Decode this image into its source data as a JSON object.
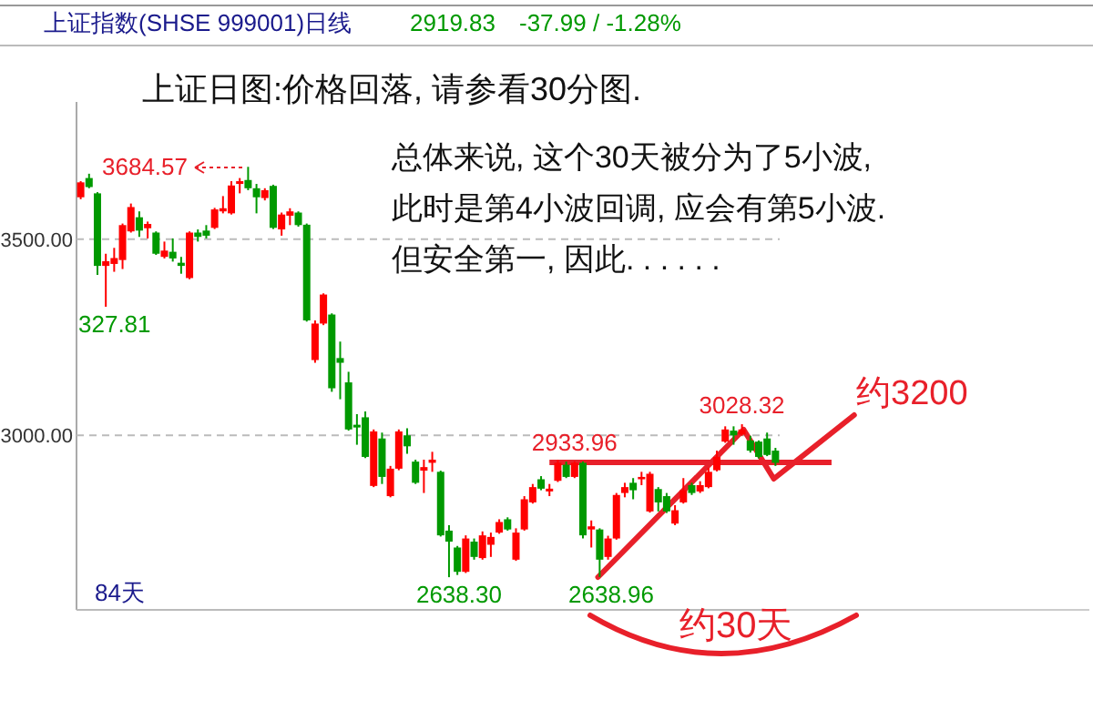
{
  "chart_data": {
    "type": "candlestick",
    "title": "上证日图:价格回落, 请参看30分图.",
    "ohlc": [
      [
        3607,
        3648,
        3602,
        3645
      ],
      [
        3656,
        3667,
        3630,
        3633
      ],
      [
        3617,
        3620,
        3409,
        3432
      ],
      [
        3432,
        3463,
        3327.81,
        3444
      ],
      [
        3437,
        3478,
        3417,
        3452
      ],
      [
        3447,
        3540,
        3424,
        3536
      ],
      [
        3520,
        3591,
        3517,
        3582
      ],
      [
        3556,
        3571,
        3506,
        3522
      ],
      [
        3528,
        3545,
        3502,
        3539
      ],
      [
        3517,
        3520,
        3460,
        3463
      ],
      [
        3455,
        3494,
        3451,
        3471
      ],
      [
        3468,
        3502,
        3443,
        3451
      ],
      [
        3440,
        3455,
        3412,
        3432
      ],
      [
        3401,
        3520,
        3398,
        3517
      ],
      [
        3517,
        3525,
        3494,
        3506
      ],
      [
        3522,
        3536,
        3502,
        3509
      ],
      [
        3529,
        3580,
        3526,
        3576
      ],
      [
        3571,
        3610,
        3566,
        3579
      ],
      [
        3566,
        3648,
        3563,
        3637
      ],
      [
        3641,
        3656,
        3617,
        3648
      ],
      [
        3651,
        3684.57,
        3625,
        3630
      ],
      [
        3630,
        3641,
        3566,
        3607
      ],
      [
        3605,
        3630,
        3599,
        3625
      ],
      [
        3636,
        3639,
        3526,
        3529
      ],
      [
        3525,
        3568,
        3509,
        3563
      ],
      [
        3560,
        3579,
        3536,
        3571
      ],
      [
        3568,
        3571,
        3532,
        3536
      ],
      [
        3537,
        3540,
        3290,
        3293
      ],
      [
        3192,
        3293,
        3185,
        3285
      ],
      [
        3285,
        3362,
        3281,
        3359
      ],
      [
        3308,
        3311,
        3111,
        3120
      ],
      [
        3197,
        3239,
        3092,
        3185
      ],
      [
        3135,
        3162,
        3012,
        3015
      ],
      [
        3027,
        3054,
        2976,
        3020
      ],
      [
        3046,
        3061,
        2942,
        2945
      ],
      [
        2871,
        3015,
        2868,
        3010
      ],
      [
        2992,
        3007,
        2876,
        2894
      ],
      [
        2845,
        2922,
        2842,
        2915
      ],
      [
        2915,
        3015,
        2911,
        3010
      ],
      [
        3000,
        3018,
        2953,
        2972
      ],
      [
        2933,
        2938,
        2876,
        2879
      ],
      [
        2910,
        2938,
        2853,
        2919
      ],
      [
        2930,
        2958,
        2907,
        2938
      ],
      [
        2907,
        2910,
        2742,
        2745
      ],
      [
        2757,
        2771,
        2638.3,
        2729
      ],
      [
        2714,
        2718,
        2644,
        2652
      ],
      [
        2652,
        2745,
        2649,
        2737
      ],
      [
        2729,
        2737,
        2683,
        2690
      ],
      [
        2687,
        2755,
        2683,
        2745
      ],
      [
        2721,
        2752,
        2690,
        2741
      ],
      [
        2752,
        2786,
        2749,
        2779
      ],
      [
        2786,
        2791,
        2757,
        2760
      ],
      [
        2683,
        2763,
        2680,
        2752
      ],
      [
        2760,
        2845,
        2757,
        2837
      ],
      [
        2829,
        2876,
        2826,
        2868
      ],
      [
        2888,
        2896,
        2860,
        2864
      ],
      [
        2857,
        2876,
        2845,
        2864
      ],
      [
        2884,
        2938,
        2881,
        2930
      ],
      [
        2925,
        2933,
        2891,
        2894
      ],
      [
        2894,
        2933.96,
        2891,
        2930
      ],
      [
        2930,
        2933,
        2737,
        2745
      ],
      [
        2760,
        2783,
        2714,
        2768
      ],
      [
        2760,
        2763,
        2638.96,
        2683
      ],
      [
        2690,
        2744,
        2683,
        2737
      ],
      [
        2737,
        2853,
        2734,
        2848
      ],
      [
        2853,
        2879,
        2842,
        2868
      ],
      [
        2879,
        2891,
        2837,
        2860
      ],
      [
        2888,
        2907,
        2873,
        2894
      ],
      [
        2806,
        2907,
        2803,
        2902
      ],
      [
        2863,
        2868,
        2806,
        2829
      ],
      [
        2845,
        2853,
        2802,
        2806
      ],
      [
        2775,
        2822,
        2771,
        2809
      ],
      [
        2829,
        2891,
        2826,
        2860
      ],
      [
        2873,
        2879,
        2848,
        2853
      ],
      [
        2857,
        2883,
        2853,
        2873
      ],
      [
        2868,
        2917,
        2865,
        2907
      ],
      [
        2911,
        2961,
        2908,
        2945
      ],
      [
        2984,
        3023,
        2981,
        3015
      ],
      [
        3012,
        3023,
        2976,
        3000
      ],
      [
        3002,
        3028.32,
        2999,
        3015
      ],
      [
        2987,
        2999,
        2956,
        2961
      ],
      [
        2984,
        2987,
        2941,
        2945
      ],
      [
        2992,
        3007,
        2947,
        2950
      ],
      [
        2961,
        2968,
        2922,
        2930
      ]
    ],
    "categories": [
      null,
      null,
      null,
      null,
      null,
      null,
      null,
      null,
      null,
      null,
      null,
      null,
      null,
      null,
      null,
      null,
      null,
      null,
      null,
      null,
      null,
      null,
      null,
      null,
      null,
      null,
      null,
      null,
      null,
      null,
      null,
      null,
      null,
      null,
      null,
      null,
      null,
      null,
      null,
      null,
      null,
      null,
      null,
      null,
      null,
      null,
      null,
      null,
      null,
      null,
      null,
      null,
      null,
      null,
      null,
      null,
      null,
      null,
      null,
      null,
      null,
      null,
      null,
      null,
      null,
      null,
      null,
      null,
      null,
      null,
      null,
      null,
      null,
      null,
      null,
      null,
      null,
      null,
      null,
      null,
      null,
      null,
      null,
      null
    ],
    "ylim": [
      2555,
      3850
    ],
    "yticks": [
      {
        "value": 3500,
        "label": "3500.00"
      },
      {
        "value": 3000,
        "label": "3000.00"
      }
    ],
    "grid": "y",
    "annotations": [
      "上证指数(SHSE 999001)日线",
      "2919.83",
      "-37.99 / -1.28%",
      "总体来说, 这个30天被分为了5小波,",
      "此时是第4小波回调, 应会有第5小波.",
      "但安全第一, 因此. . . . . .",
      "84天",
      "约3200",
      "约30天",
      "3684.57",
      {
        "text": "327.81",
        "y": 3327.81
      },
      {
        "text": "2638.30",
        "y": 2638.3
      },
      {
        "text": "2933.96",
        "y": 2933.96
      },
      "2638.96",
      {
        "text": "3028.32",
        "y": 3028.32
      }
    ]
  }
}
